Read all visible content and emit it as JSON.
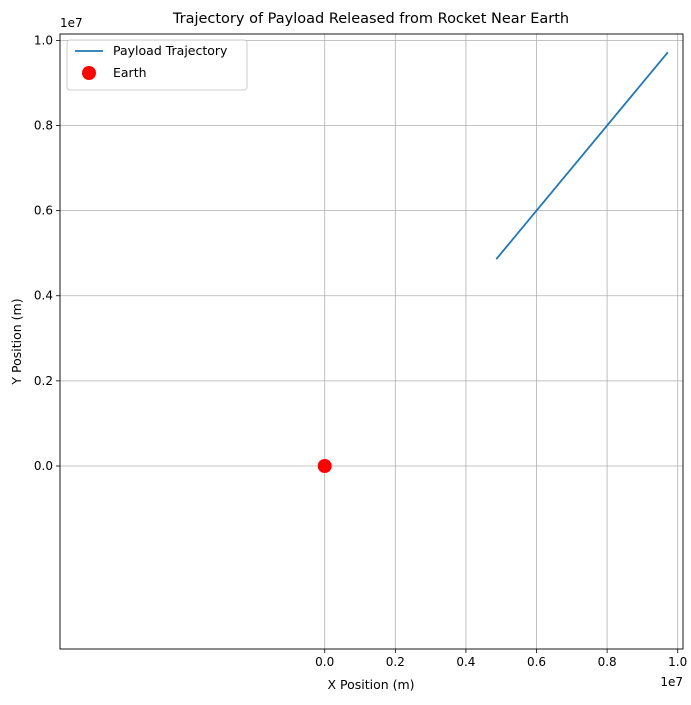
{
  "chart_data": {
    "type": "line",
    "title": "Trajectory of Payload Released from Rocket Near Earth",
    "xlabel": "X Position (m)",
    "ylabel": "Y Position (m)",
    "x_offset_label": "1e7",
    "y_offset_label": "1e7",
    "xlim": [
      -7500000,
      10150000
    ],
    "ylim": [
      -4300000,
      10150000
    ],
    "x_ticks": [
      0,
      2000000,
      4000000,
      6000000,
      8000000,
      10000000
    ],
    "x_tick_labels": [
      "0.0",
      "0.2",
      "0.4",
      "0.6",
      "0.8",
      "1.0"
    ],
    "y_ticks": [
      0,
      2000000,
      4000000,
      6000000,
      8000000,
      10000000
    ],
    "y_tick_labels": [
      "0.0",
      "0.2",
      "0.4",
      "0.6",
      "0.8",
      "1.0"
    ],
    "grid": true,
    "legend_position": "top-left",
    "series": [
      {
        "name": "Payload Trajectory",
        "kind": "line",
        "color": "#1f77b4",
        "x": [
          4860000,
          9720000
        ],
        "y": [
          4860000,
          9720000
        ]
      },
      {
        "name": "Earth",
        "kind": "scatter",
        "color": "#ff0000",
        "x": [
          0
        ],
        "y": [
          0
        ]
      }
    ]
  }
}
